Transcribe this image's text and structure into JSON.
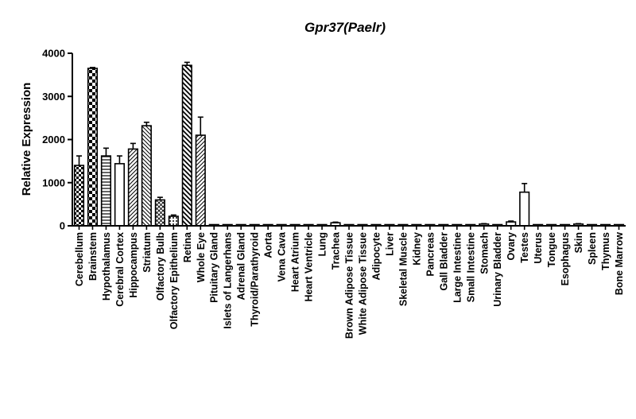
{
  "chart_data": {
    "type": "bar",
    "title": "Gpr37(Paelr)",
    "xlabel": "",
    "ylabel": "Relative Expression",
    "ylim": [
      0,
      4000
    ],
    "yticks": [
      0,
      1000,
      2000,
      3000,
      4000
    ],
    "grid": false,
    "legend": "none",
    "categories": [
      "Cerebellum",
      "Brainstem",
      "Hypothalamus",
      "Cerebral Cortex",
      "Hippocampus",
      "Striatum",
      "Olfactory Bulb",
      "Olfactory Epithelium",
      "Retina",
      "Whole Eye",
      "Pituitary Gland",
      "Islets of Langerhans",
      "Adrenal Gland",
      "Thyroid/Parathyroid",
      "Aorta",
      "Vena Cava",
      "Heart Atrium",
      "Heart Ventricle",
      "Lung",
      "Trachea",
      "Brown Adipose Tissue",
      "White Adipose Tissue",
      "Adipocyte",
      "Liver",
      "Skeletal Muscle",
      "Kidney",
      "Pancreas",
      "Gall Bladder",
      "Large Intestine",
      "Small Intestine",
      "Stomach",
      "Urinary Bladder",
      "Ovary",
      "Testes",
      "Uterus",
      "Tongue",
      "Esophagus",
      "Skin",
      "Spleen",
      "Thymus",
      "Bone Marrow"
    ],
    "values": [
      1400,
      3650,
      1620,
      1440,
      1780,
      2320,
      600,
      220,
      3720,
      2100,
      20,
      5,
      15,
      5,
      5,
      5,
      5,
      5,
      20,
      70,
      5,
      5,
      5,
      5,
      5,
      15,
      5,
      5,
      20,
      15,
      40,
      20,
      90,
      780,
      5,
      5,
      5,
      40,
      5,
      5,
      5
    ],
    "errors": [
      220,
      20,
      180,
      180,
      130,
      80,
      60,
      30,
      70,
      420,
      0,
      0,
      0,
      0,
      0,
      0,
      0,
      0,
      0,
      15,
      0,
      0,
      0,
      0,
      0,
      0,
      0,
      0,
      0,
      0,
      10,
      0,
      20,
      200,
      0,
      0,
      0,
      10,
      0,
      0,
      0
    ],
    "patterns": [
      "check",
      "check-big",
      "hlines",
      "open",
      "diag-right",
      "diag-left",
      "crosshatch",
      "dots",
      "diag-left-bold",
      "diag-right",
      "open",
      "open",
      "open",
      "open",
      "open",
      "open",
      "open",
      "open",
      "open",
      "open",
      "open",
      "open",
      "open",
      "open",
      "open",
      "open",
      "open",
      "open",
      "open",
      "open",
      "open",
      "open",
      "open",
      "open",
      "open",
      "open",
      "open",
      "open",
      "open",
      "open",
      "open"
    ]
  }
}
